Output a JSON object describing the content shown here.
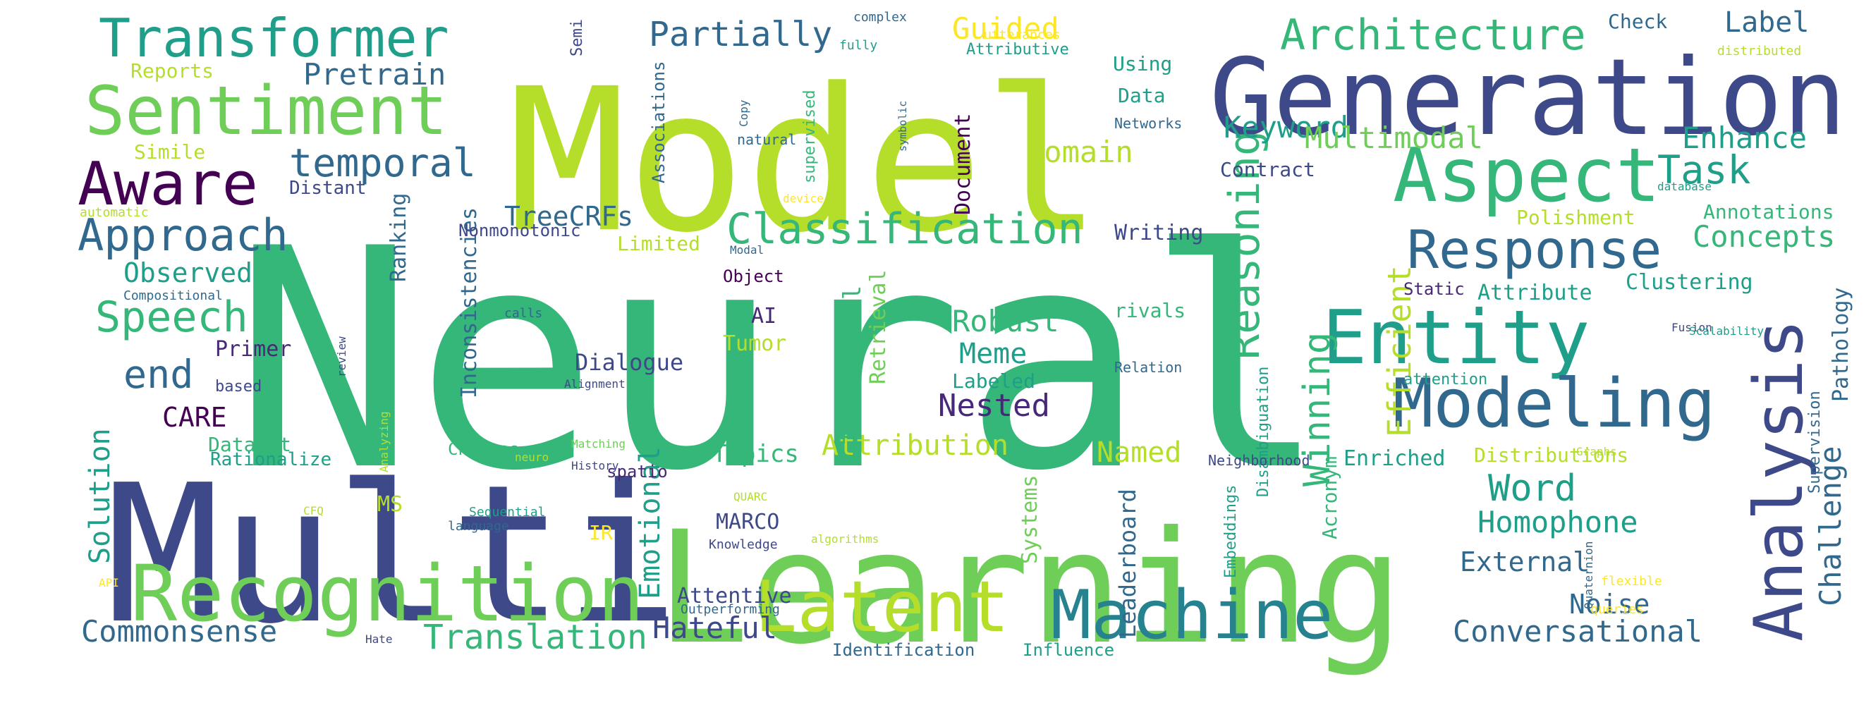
{
  "palette": {
    "yellow_green": "#b5de2b",
    "green": "#6ece58",
    "teal_green": "#35b779",
    "teal": "#1f9e89",
    "blue_teal": "#26828e",
    "blue": "#31688e",
    "indigo": "#3e4989",
    "purple": "#482878",
    "dark_purple": "#440154",
    "yellow": "#fde725"
  },
  "words": [
    {
      "text": "Neural",
      "c": "teal_green"
    },
    {
      "text": "Model",
      "c": "yellow_green"
    },
    {
      "text": "Multi",
      "c": "indigo"
    },
    {
      "text": "Learning",
      "c": "green"
    },
    {
      "text": "Generation",
      "c": "indigo"
    },
    {
      "text": "Recognition",
      "c": "green"
    },
    {
      "text": "Entity",
      "c": "teal"
    },
    {
      "text": "Sentiment",
      "c": "green"
    },
    {
      "text": "Aspect",
      "c": "teal_green"
    },
    {
      "text": "Modeling",
      "c": "blue"
    },
    {
      "text": "Analysis",
      "c": "indigo"
    },
    {
      "text": "Machine",
      "c": "blue_teal"
    },
    {
      "text": "Latent",
      "c": "yellow_green"
    },
    {
      "text": "Transformer",
      "c": "teal"
    },
    {
      "text": "Aware",
      "c": "dark_purple"
    },
    {
      "text": "Response",
      "c": "blue"
    },
    {
      "text": "Approach",
      "c": "blue"
    },
    {
      "text": "Classification",
      "c": "teal_green"
    },
    {
      "text": "Architecture",
      "c": "teal_green"
    },
    {
      "text": "Reasoning",
      "c": "teal_green"
    },
    {
      "text": "Speech",
      "c": "teal_green"
    },
    {
      "text": "temporal",
      "c": "blue"
    },
    {
      "text": "end",
      "c": "blue"
    },
    {
      "text": "Translation",
      "c": "teal_green"
    },
    {
      "text": "Commonsense",
      "c": "blue"
    },
    {
      "text": "Conversational",
      "c": "blue"
    },
    {
      "text": "Partially",
      "c": "blue"
    },
    {
      "text": "Pretrain",
      "c": "blue"
    },
    {
      "text": "Task",
      "c": "teal"
    },
    {
      "text": "Winning",
      "c": "teal_green"
    },
    {
      "text": "Efficient",
      "c": "yellow_green"
    },
    {
      "text": "Hateful",
      "c": "indigo"
    },
    {
      "text": "Word",
      "c": "teal"
    },
    {
      "text": "Homophone",
      "c": "teal"
    },
    {
      "text": "Challenge",
      "c": "blue"
    },
    {
      "text": "Concepts",
      "c": "teal_green"
    },
    {
      "text": "Keyword",
      "c": "teal"
    },
    {
      "text": "Multimodal",
      "c": "green"
    },
    {
      "text": "Domain",
      "c": "yellow_green"
    },
    {
      "text": "Guided",
      "c": "yellow"
    },
    {
      "text": "Label",
      "c": "blue"
    },
    {
      "text": "Enhance",
      "c": "teal"
    },
    {
      "text": "Robust",
      "c": "teal_green"
    },
    {
      "text": "Meme",
      "c": "teal"
    },
    {
      "text": "Nested",
      "c": "purple"
    },
    {
      "text": "Attribution",
      "c": "yellow_green"
    },
    {
      "text": "Named",
      "c": "yellow_green"
    },
    {
      "text": "Emotional",
      "c": "teal"
    },
    {
      "text": "Solution",
      "c": "teal"
    },
    {
      "text": "CARE",
      "c": "dark_purple"
    },
    {
      "text": "External",
      "c": "blue"
    },
    {
      "text": "Noise",
      "c": "blue"
    },
    {
      "text": "Observed",
      "c": "teal"
    },
    {
      "text": "TreeCRFs",
      "c": "blue"
    },
    {
      "text": "Dialogue",
      "c": "indigo"
    },
    {
      "text": "Topics",
      "c": "teal_green"
    },
    {
      "text": "Traditional",
      "c": "teal_green"
    },
    {
      "text": "Retrieval",
      "c": "green"
    },
    {
      "text": "Leaderboard",
      "c": "blue"
    },
    {
      "text": "Pathology",
      "c": "blue"
    },
    {
      "text": "Clustering",
      "c": "teal"
    },
    {
      "text": "Inconsistencies",
      "c": "blue"
    },
    {
      "text": "Document",
      "c": "dark_purple"
    },
    {
      "text": "Writing",
      "c": "indigo"
    },
    {
      "text": "Attribute",
      "c": "teal"
    },
    {
      "text": "Enriched",
      "c": "teal"
    },
    {
      "text": "Distributions",
      "c": "yellow_green"
    },
    {
      "text": "Attentive",
      "c": "indigo"
    },
    {
      "text": "Systems",
      "c": "green"
    },
    {
      "text": "Acronym",
      "c": "teal_green"
    },
    {
      "text": "Tumor",
      "c": "yellow_green"
    },
    {
      "text": "AI",
      "c": "purple"
    },
    {
      "text": "MARCO",
      "c": "indigo"
    },
    {
      "text": "Primer",
      "c": "purple"
    },
    {
      "text": "Ranking",
      "c": "blue"
    },
    {
      "text": "Limited",
      "c": "yellow_green"
    },
    {
      "text": "Labeled",
      "c": "teal"
    },
    {
      "text": "Dataset",
      "c": "teal_green"
    },
    {
      "text": "rivals",
      "c": "teal_green"
    },
    {
      "text": "Annotations",
      "c": "teal_green"
    },
    {
      "text": "Polishment",
      "c": "yellow_green"
    },
    {
      "text": "Contract",
      "c": "indigo"
    },
    {
      "text": "Data",
      "c": "teal"
    },
    {
      "text": "Using",
      "c": "teal"
    },
    {
      "text": "Reports",
      "c": "yellow_green"
    },
    {
      "text": "Simile",
      "c": "yellow_green"
    },
    {
      "text": "Distant",
      "c": "indigo"
    },
    {
      "text": "Check",
      "c": "blue"
    },
    {
      "text": "Object",
      "c": "dark_purple"
    },
    {
      "text": "Nonmonotonic",
      "c": "indigo"
    },
    {
      "text": "Choices",
      "c": "teal_green"
    },
    {
      "text": "Rationalize",
      "c": "teal"
    },
    {
      "text": "spatio",
      "c": "purple"
    },
    {
      "text": "MS",
      "c": "yellow_green"
    },
    {
      "text": "IR",
      "c": "yellow"
    },
    {
      "text": "Static",
      "c": "purple"
    },
    {
      "text": "Supervision",
      "c": "blue"
    },
    {
      "text": "Embeddings",
      "c": "teal"
    },
    {
      "text": "Disambiguation",
      "c": "teal"
    },
    {
      "text": "Associations",
      "c": "blue"
    },
    {
      "text": "supervised",
      "c": "teal_green"
    },
    {
      "text": "Identification",
      "c": "blue"
    },
    {
      "text": "Influence",
      "c": "teal"
    },
    {
      "text": "Attributive",
      "c": "teal"
    },
    {
      "text": "attention",
      "c": "teal"
    },
    {
      "text": "Neighborhood",
      "c": "indigo"
    },
    {
      "text": "based",
      "c": "indigo"
    },
    {
      "text": "Relation",
      "c": "blue"
    },
    {
      "text": "Networks",
      "c": "blue"
    },
    {
      "text": "Sequential",
      "c": "teal"
    },
    {
      "text": "language",
      "c": "blue"
    },
    {
      "text": "Knowledge",
      "c": "indigo"
    },
    {
      "text": "Outperforming",
      "c": "blue"
    },
    {
      "text": "natural",
      "c": "blue"
    },
    {
      "text": "Semi",
      "c": "indigo"
    },
    {
      "text": "complex",
      "c": "blue"
    },
    {
      "text": "fully",
      "c": "teal"
    },
    {
      "text": "utterances",
      "c": "yellow"
    },
    {
      "text": "distributed",
      "c": "yellow_green"
    },
    {
      "text": "database",
      "c": "teal"
    },
    {
      "text": "Fusion",
      "c": "indigo"
    },
    {
      "text": "Scalability",
      "c": "teal"
    },
    {
      "text": "Copy",
      "c": "blue"
    },
    {
      "text": "symbolic",
      "c": "blue"
    },
    {
      "text": "device",
      "c": "yellow"
    },
    {
      "text": "Modal",
      "c": "blue"
    },
    {
      "text": "Compositional",
      "c": "blue"
    },
    {
      "text": "automatic",
      "c": "yellow_green"
    },
    {
      "text": "review",
      "c": "indigo"
    },
    {
      "text": "calls",
      "c": "blue"
    },
    {
      "text": "Alignment",
      "c": "indigo"
    },
    {
      "text": "Analyzing",
      "c": "yellow_green"
    },
    {
      "text": "neuro",
      "c": "yellow_green"
    },
    {
      "text": "Matching",
      "c": "green"
    },
    {
      "text": "History",
      "c": "indigo"
    },
    {
      "text": "CFQ",
      "c": "yellow_green"
    },
    {
      "text": "QUARC",
      "c": "yellow_green"
    },
    {
      "text": "algorithms",
      "c": "yellow_green"
    },
    {
      "text": "API",
      "c": "yellow"
    },
    {
      "text": "Hate",
      "c": "indigo"
    },
    {
      "text": "Graphs",
      "c": "yellow_green"
    },
    {
      "text": "Quaternion",
      "c": "blue"
    },
    {
      "text": "queries",
      "c": "yellow"
    },
    {
      "text": "flexible",
      "c": "yellow"
    }
  ]
}
